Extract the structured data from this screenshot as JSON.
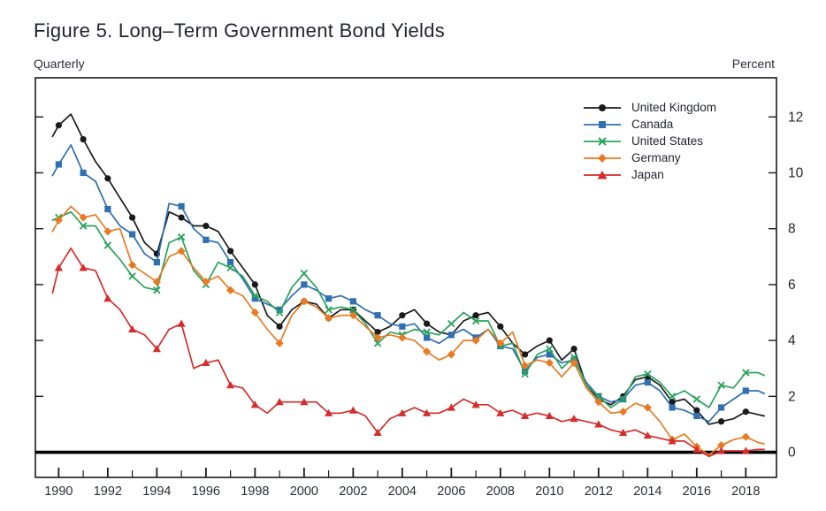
{
  "chart_data": {
    "type": "line",
    "title": "Figure 5.  Long–Term Government Bond Yields",
    "top_left_label": "Quarterly",
    "top_right_label": "Percent",
    "frequency": "Quarterly",
    "unit": "Percent",
    "grid": false,
    "legend_position": "inside-top-right",
    "axis_color": "#1a1a1a",
    "zero_line": 0,
    "xlim": [
      1989.05,
      2019.25
    ],
    "ylim": [
      -0.9,
      13.4
    ],
    "yticks": [
      0,
      2,
      4,
      6,
      8,
      10,
      12
    ],
    "xticks_minor_years": [
      1990,
      2018
    ],
    "xtick_labels": [
      1990,
      1992,
      1994,
      1996,
      1998,
      2000,
      2002,
      2004,
      2006,
      2008,
      2010,
      2012,
      2014,
      2016,
      2018
    ],
    "x": [
      1989.75,
      1990,
      1990.5,
      1991,
      1991.5,
      1992,
      1992.5,
      1993,
      1993.5,
      1994,
      1994.5,
      1995,
      1995.5,
      1996,
      1996.5,
      1997,
      1997.5,
      1998,
      1998.5,
      1999,
      1999.5,
      2000,
      2000.5,
      2001,
      2001.5,
      2002,
      2002.5,
      2003,
      2003.5,
      2004,
      2004.5,
      2005,
      2005.5,
      2006,
      2006.5,
      2007,
      2007.5,
      2008,
      2008.5,
      2009,
      2009.5,
      2010,
      2010.5,
      2011,
      2011.5,
      2012,
      2012.5,
      2013,
      2013.5,
      2014,
      2014.5,
      2015,
      2015.5,
      2016,
      2016.5,
      2017,
      2017.5,
      2018,
      2018.5,
      2018.75
    ],
    "series": [
      {
        "name": "United Kingdom",
        "color": "#1a1a1a",
        "marker": "circle",
        "values": [
          11.3,
          11.7,
          12.1,
          11.2,
          10.4,
          9.8,
          9.1,
          8.4,
          7.5,
          7.1,
          8.6,
          8.4,
          8.1,
          8.1,
          7.9,
          7.2,
          6.6,
          6.0,
          4.9,
          4.5,
          5.1,
          5.4,
          5.3,
          4.8,
          5.1,
          5.1,
          4.7,
          4.3,
          4.5,
          4.9,
          5.1,
          4.6,
          4.3,
          4.2,
          4.7,
          4.9,
          5.0,
          4.5,
          3.9,
          3.5,
          3.8,
          4.0,
          3.3,
          3.7,
          2.4,
          1.9,
          1.7,
          2.0,
          2.6,
          2.7,
          2.4,
          1.8,
          1.9,
          1.5,
          1.0,
          1.1,
          1.2,
          1.45,
          1.35,
          1.3
        ]
      },
      {
        "name": "Canada",
        "color": "#2f6fb2",
        "marker": "square",
        "values": [
          9.9,
          10.3,
          11.0,
          10.0,
          9.7,
          8.7,
          8.1,
          7.8,
          7.1,
          6.8,
          8.9,
          8.8,
          8.0,
          7.6,
          7.5,
          6.8,
          6.2,
          5.5,
          5.3,
          5.1,
          5.6,
          6.0,
          5.8,
          5.5,
          5.6,
          5.4,
          5.1,
          4.9,
          4.6,
          4.5,
          4.6,
          4.1,
          3.9,
          4.2,
          4.4,
          4.1,
          4.4,
          3.8,
          3.7,
          2.9,
          3.4,
          3.5,
          3.2,
          3.3,
          2.5,
          2.0,
          1.8,
          1.9,
          2.4,
          2.5,
          2.2,
          1.6,
          1.5,
          1.3,
          1.1,
          1.6,
          1.9,
          2.2,
          2.2,
          2.1
        ]
      },
      {
        "name": "United States",
        "color": "#2aa35c",
        "marker": "x",
        "values": [
          8.3,
          8.4,
          8.6,
          8.1,
          8.1,
          7.4,
          6.9,
          6.3,
          5.9,
          5.8,
          7.5,
          7.7,
          6.5,
          6.0,
          6.8,
          6.6,
          6.3,
          5.6,
          5.4,
          5.0,
          5.9,
          6.4,
          5.9,
          5.1,
          5.2,
          5.1,
          4.6,
          3.9,
          4.3,
          4.2,
          4.4,
          4.3,
          4.2,
          4.6,
          5.0,
          4.7,
          4.7,
          3.8,
          3.9,
          2.8,
          3.5,
          3.7,
          3.0,
          3.4,
          2.4,
          2.0,
          1.6,
          1.9,
          2.7,
          2.8,
          2.5,
          2.0,
          2.2,
          1.9,
          1.6,
          2.4,
          2.3,
          2.85,
          2.85,
          2.75
        ]
      },
      {
        "name": "Germany",
        "color": "#e87a22",
        "marker": "diamond",
        "values": [
          7.9,
          8.3,
          8.8,
          8.4,
          8.5,
          7.9,
          8.0,
          6.7,
          6.4,
          6.1,
          7.0,
          7.2,
          6.6,
          6.1,
          6.3,
          5.8,
          5.6,
          5.0,
          4.4,
          3.9,
          4.9,
          5.4,
          5.2,
          4.8,
          4.9,
          4.9,
          4.5,
          4.1,
          4.2,
          4.1,
          4.0,
          3.6,
          3.3,
          3.5,
          4.0,
          4.0,
          4.4,
          3.9,
          4.3,
          3.1,
          3.3,
          3.2,
          2.7,
          3.2,
          2.3,
          1.8,
          1.4,
          1.45,
          1.75,
          1.6,
          1.1,
          0.45,
          0.65,
          0.2,
          -0.1,
          0.25,
          0.45,
          0.55,
          0.35,
          0.3
        ]
      },
      {
        "name": "Japan",
        "color": "#d62c2c",
        "marker": "triangle",
        "values": [
          5.7,
          6.6,
          7.3,
          6.6,
          6.5,
          5.5,
          5.1,
          4.4,
          4.2,
          3.7,
          4.4,
          4.6,
          3.0,
          3.2,
          3.3,
          2.4,
          2.3,
          1.7,
          1.4,
          1.8,
          1.8,
          1.8,
          1.8,
          1.4,
          1.4,
          1.5,
          1.3,
          0.7,
          1.2,
          1.4,
          1.6,
          1.4,
          1.4,
          1.6,
          1.9,
          1.7,
          1.7,
          1.4,
          1.5,
          1.3,
          1.4,
          1.3,
          1.1,
          1.2,
          1.1,
          1.0,
          0.8,
          0.7,
          0.8,
          0.6,
          0.5,
          0.4,
          0.4,
          0.1,
          -0.15,
          0.05,
          0.05,
          0.05,
          0.1,
          0.1
        ]
      }
    ]
  }
}
